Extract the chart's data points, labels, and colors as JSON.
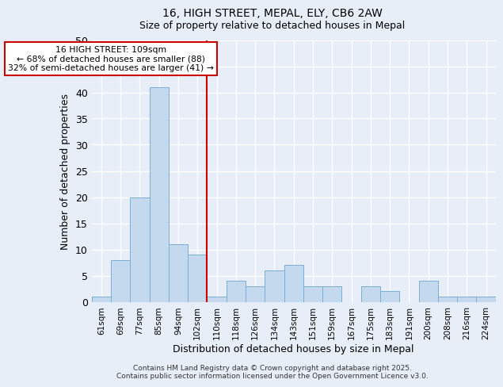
{
  "title": "16, HIGH STREET, MEPAL, ELY, CB6 2AW",
  "subtitle": "Size of property relative to detached houses in Mepal",
  "xlabel": "Distribution of detached houses by size in Mepal",
  "ylabel": "Number of detached properties",
  "bar_labels": [
    "61sqm",
    "69sqm",
    "77sqm",
    "85sqm",
    "94sqm",
    "102sqm",
    "110sqm",
    "118sqm",
    "126sqm",
    "134sqm",
    "143sqm",
    "151sqm",
    "159sqm",
    "167sqm",
    "175sqm",
    "183sqm",
    "191sqm",
    "200sqm",
    "208sqm",
    "216sqm",
    "224sqm"
  ],
  "bar_values": [
    1,
    8,
    20,
    41,
    11,
    9,
    1,
    4,
    3,
    6,
    7,
    3,
    3,
    0,
    3,
    2,
    0,
    4,
    1,
    1,
    1
  ],
  "bar_color": "#c5d9ee",
  "bar_edge_color": "#7bafd4",
  "vline_x_index": 6,
  "vline_color": "#cc0000",
  "annotation_title": "16 HIGH STREET: 109sqm",
  "annotation_line1": "← 68% of detached houses are smaller (88)",
  "annotation_line2": "32% of semi-detached houses are larger (41) →",
  "annotation_box_color": "white",
  "annotation_box_edge": "#cc0000",
  "ylim": [
    0,
    50
  ],
  "yticks": [
    0,
    5,
    10,
    15,
    20,
    25,
    30,
    35,
    40,
    45,
    50
  ],
  "background_color": "#e8eef8",
  "grid_color": "white",
  "footer_line1": "Contains HM Land Registry data © Crown copyright and database right 2025.",
  "footer_line2": "Contains public sector information licensed under the Open Government Licence v3.0."
}
